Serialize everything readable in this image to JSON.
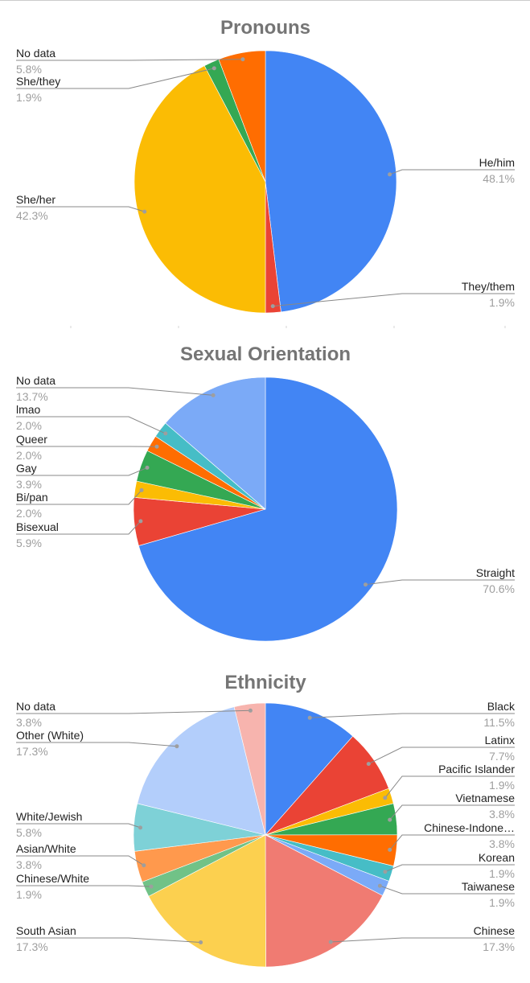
{
  "chart_data": [
    {
      "type": "pie",
      "title": "Pronouns",
      "slices": [
        {
          "label": "He/him",
          "value": 48.1,
          "display": "48.1%",
          "color": "#4285f4"
        },
        {
          "label": "They/them",
          "value": 1.9,
          "display": "1.9%",
          "color": "#ea4335"
        },
        {
          "label": "She/her",
          "value": 42.3,
          "display": "42.3%",
          "color": "#fbbc04"
        },
        {
          "label": "She/they",
          "value": 1.9,
          "display": "1.9%",
          "color": "#34a853"
        },
        {
          "label": "No data",
          "value": 5.8,
          "display": "5.8%",
          "color": "#ff6d01"
        }
      ]
    },
    {
      "type": "pie",
      "title": "Sexual Orientation",
      "slices": [
        {
          "label": "Straight",
          "value": 70.6,
          "display": "70.6%",
          "color": "#4285f4"
        },
        {
          "label": "Bisexual",
          "value": 5.9,
          "display": "5.9%",
          "color": "#ea4335"
        },
        {
          "label": "Bi/pan",
          "value": 2.0,
          "display": "2.0%",
          "color": "#fbbc04"
        },
        {
          "label": "Gay",
          "value": 3.9,
          "display": "3.9%",
          "color": "#34a853"
        },
        {
          "label": "Queer",
          "value": 2.0,
          "display": "2.0%",
          "color": "#ff6d01"
        },
        {
          "label": "lmao",
          "value": 2.0,
          "display": "2.0%",
          "color": "#46bdc6"
        },
        {
          "label": "No data",
          "value": 13.7,
          "display": "13.7%",
          "color": "#7baaf7"
        }
      ]
    },
    {
      "type": "pie",
      "title": "Ethnicity",
      "slices": [
        {
          "label": "Black",
          "value": 11.5,
          "display": "11.5%",
          "color": "#4285f4"
        },
        {
          "label": "Latinx",
          "value": 7.7,
          "display": "7.7%",
          "color": "#ea4335"
        },
        {
          "label": "Pacific Islander",
          "value": 1.9,
          "display": "1.9%",
          "color": "#fbbc04"
        },
        {
          "label": "Vietnamese",
          "value": 3.8,
          "display": "3.8%",
          "color": "#34a853"
        },
        {
          "label": "Chinese-Indone…",
          "value": 3.8,
          "display": "3.8%",
          "color": "#ff6d01"
        },
        {
          "label": "Korean",
          "value": 1.9,
          "display": "1.9%",
          "color": "#46bdc6"
        },
        {
          "label": "Taiwanese",
          "value": 1.9,
          "display": "1.9%",
          "color": "#7baaf7"
        },
        {
          "label": "Chinese",
          "value": 17.3,
          "display": "17.3%",
          "color": "#f07b72"
        },
        {
          "label": "South Asian",
          "value": 17.3,
          "display": "17.3%",
          "color": "#fcd04f"
        },
        {
          "label": "Chinese/White",
          "value": 1.9,
          "display": "1.9%",
          "color": "#71c287"
        },
        {
          "label": "Asian/White",
          "value": 3.8,
          "display": "3.8%",
          "color": "#ff994d"
        },
        {
          "label": "White/Jewish",
          "value": 5.8,
          "display": "5.8%",
          "color": "#7ed1d7"
        },
        {
          "label": "Other (White)",
          "value": 17.3,
          "display": "17.3%",
          "color": "#b3cefb"
        },
        {
          "label": "No data",
          "value": 3.8,
          "display": "3.8%",
          "color": "#f7b4ae"
        }
      ]
    }
  ]
}
